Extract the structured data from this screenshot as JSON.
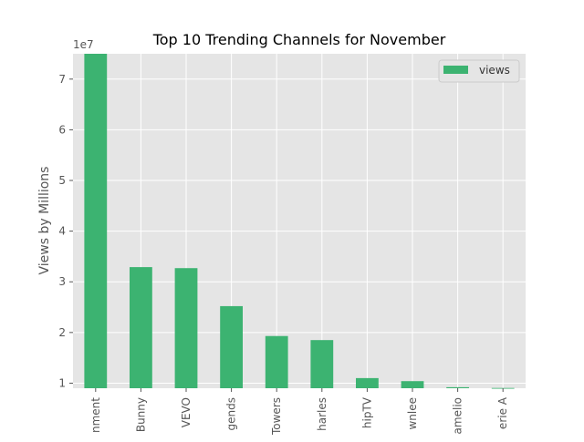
{
  "chart_data": {
    "type": "bar",
    "title": "Top 10 Trending Channels for November",
    "xlabel": "",
    "ylabel": "Views by Millions",
    "y_offset_label": "1e7",
    "y_tick_values": [
      10000000,
      20000000,
      30000000,
      40000000,
      50000000,
      60000000,
      70000000
    ],
    "y_tick_labels": [
      "1",
      "2",
      "3",
      "4",
      "5",
      "6",
      "7"
    ],
    "ylim": [
      9000000,
      75000000
    ],
    "categories": [
      "nment",
      "Bunny",
      "VEVO",
      "gends",
      "Towers",
      "harles",
      "hipTV",
      "wnlee",
      "amelio",
      "erie A"
    ],
    "series": [
      {
        "name": "views",
        "color": "#3cb371",
        "values": [
          75000000,
          32900000,
          32700000,
          25200000,
          19300000,
          18500000,
          11000000,
          10400000,
          9200000,
          9050000
        ]
      }
    ],
    "grid": true,
    "legend": "top-right",
    "style": {
      "plot_background": "#e5e5e5",
      "grid_color": "#ffffff",
      "bar_color": "#3cb371"
    }
  }
}
